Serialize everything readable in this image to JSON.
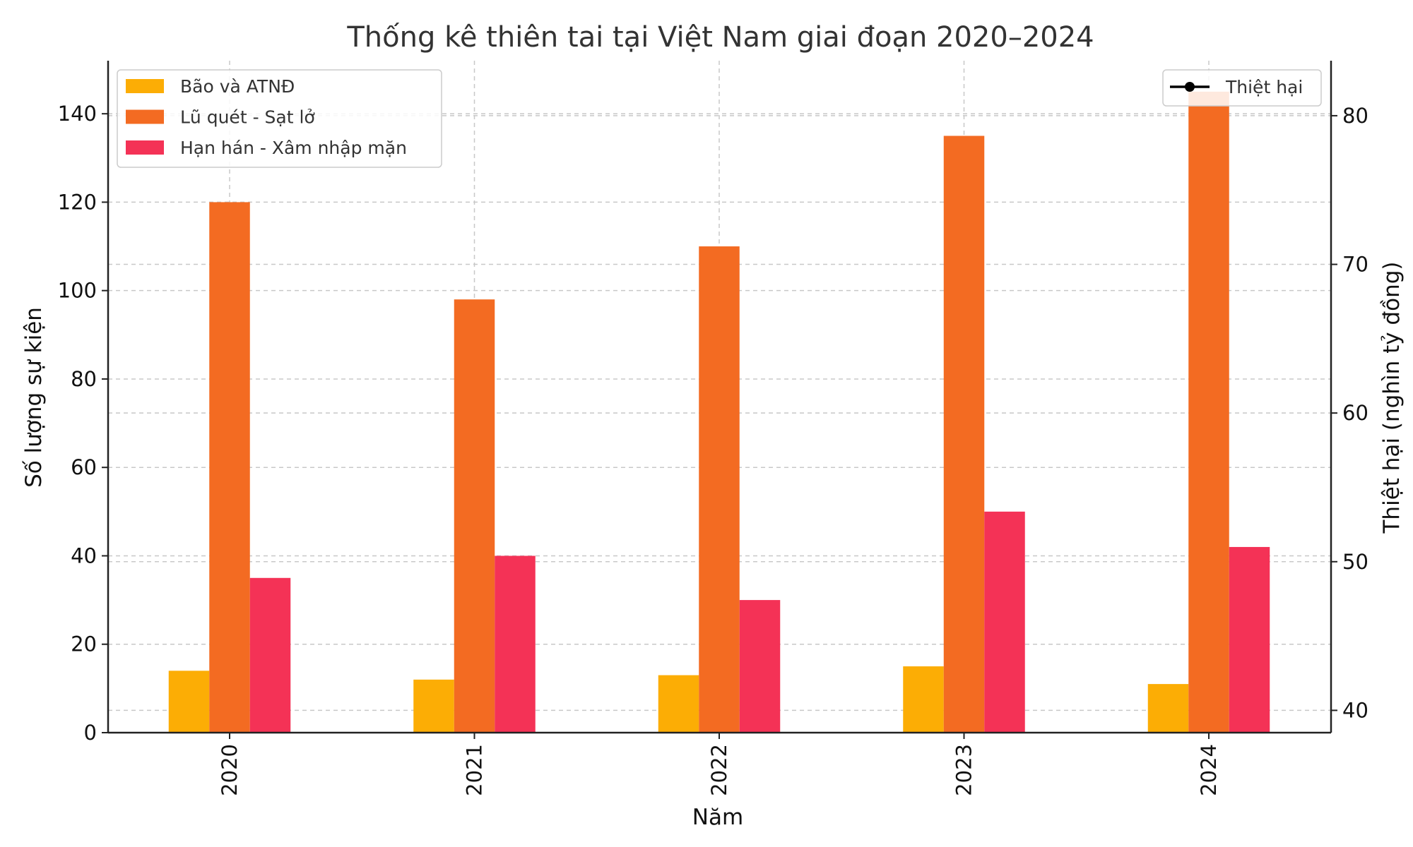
{
  "chart_data": {
    "type": "bar",
    "title": "Thống kê thiên tai tại Việt Nam giai đoạn 2020–2024",
    "xlabel": "Năm",
    "ylabel": "Số lượng sự kiện",
    "y2label": "Thiệt hại (nghìn tỷ đồng)",
    "categories": [
      "2020",
      "2021",
      "2022",
      "2023",
      "2024"
    ],
    "ylim": [
      0,
      152
    ],
    "yticks": [
      0,
      20,
      40,
      60,
      80,
      100,
      120,
      140
    ],
    "y2lim": [
      38.5,
      83.7
    ],
    "y2ticks": [
      40,
      50,
      60,
      70,
      80
    ],
    "grid": true,
    "series": [
      {
        "name": "Bão và ATNĐ",
        "color": "#FCAD05",
        "values": [
          14,
          12,
          13,
          15,
          11
        ]
      },
      {
        "name": "Lũ quét - Sạt lở",
        "color": "#F36B22",
        "values": [
          120,
          98,
          110,
          135,
          145
        ]
      },
      {
        "name": "Hạn hán - Xâm nhập mặn",
        "color": "#F43256",
        "values": [
          35,
          40,
          30,
          50,
          42
        ]
      }
    ],
    "line_series": {
      "name": "Thiệt hại",
      "color": "#000000"
    },
    "legend": {
      "bars": "top-left",
      "line": "top-right"
    }
  }
}
